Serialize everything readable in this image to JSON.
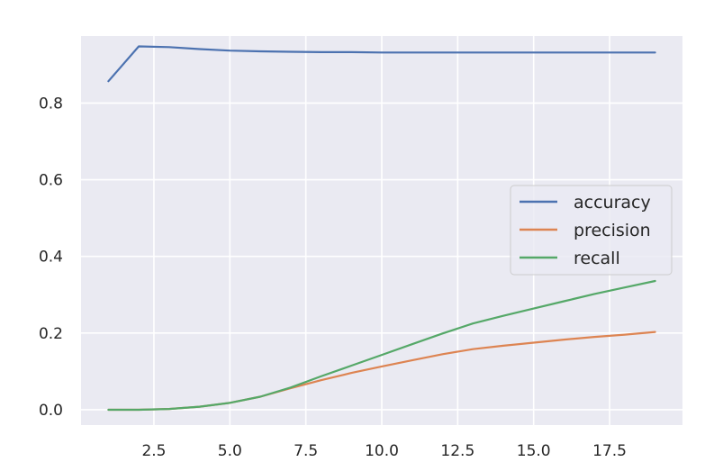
{
  "chart_data": {
    "type": "line",
    "title": "",
    "xlabel": "",
    "ylabel": "",
    "xlim": [
      0.1,
      19.9
    ],
    "ylim": [
      -0.04,
      0.975
    ],
    "xticks": [
      2.5,
      5.0,
      7.5,
      10.0,
      12.5,
      15.0,
      17.5
    ],
    "xtick_labels": [
      "2.5",
      "5.0",
      "7.5",
      "10.0",
      "12.5",
      "15.0",
      "17.5"
    ],
    "yticks": [
      0.0,
      0.2,
      0.4,
      0.6,
      0.8
    ],
    "ytick_labels": [
      "0.0",
      "0.2",
      "0.4",
      "0.6",
      "0.8"
    ],
    "grid": true,
    "legend_position": "center-right",
    "x": [
      1,
      2,
      3,
      4,
      5,
      6,
      7,
      8,
      9,
      10,
      11,
      12,
      13,
      14,
      15,
      16,
      17,
      18,
      19
    ],
    "series": [
      {
        "name": "accuracy",
        "color": "#4c72b0",
        "values": [
          0.857,
          0.948,
          0.946,
          0.941,
          0.937,
          0.935,
          0.934,
          0.933,
          0.933,
          0.932,
          0.932,
          0.932,
          0.932,
          0.932,
          0.932,
          0.932,
          0.932,
          0.932,
          0.932
        ]
      },
      {
        "name": "precision",
        "color": "#dd8452",
        "values": [
          0.0,
          0.0,
          0.002,
          0.008,
          0.018,
          0.034,
          0.056,
          0.077,
          0.096,
          0.113,
          0.129,
          0.145,
          0.158,
          0.167,
          0.175,
          0.183,
          0.19,
          0.196,
          0.203
        ]
      },
      {
        "name": "recall",
        "color": "#55a868",
        "values": [
          0.0,
          0.0,
          0.002,
          0.008,
          0.018,
          0.034,
          0.058,
          0.087,
          0.115,
          0.143,
          0.171,
          0.199,
          0.225,
          0.245,
          0.264,
          0.283,
          0.302,
          0.319,
          0.336
        ]
      }
    ]
  }
}
